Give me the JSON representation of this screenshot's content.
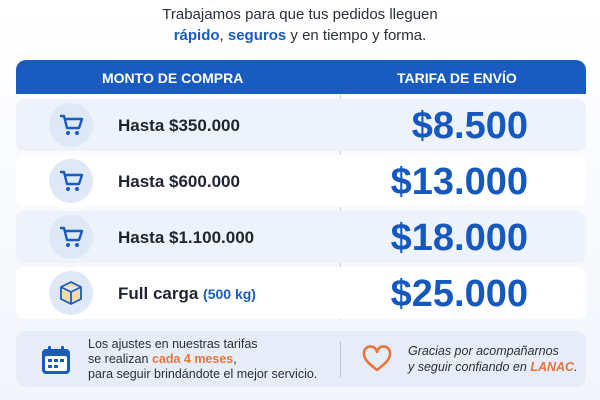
{
  "intro": {
    "line1": "Trabajamos para que tus pedidos lleguen",
    "line2": [
      {
        "text": "rápido"
      },
      {
        "text": ", "
      },
      {
        "text": "seguros"
      },
      {
        "text": " y en tiempo y forma."
      }
    ]
  },
  "table": {
    "headers": [
      "MONTO DE COMPRA",
      "TARIFA DE ENVÍO"
    ],
    "rows": [
      {
        "amount": "Hasta $350.000",
        "price": "$8.500"
      },
      {
        "amount": "Hasta $600.000",
        "price": "$13.000"
      },
      {
        "amount": "Hasta $1.100.000",
        "price": "$18.000"
      },
      {
        "amount": "Full carga",
        "note": "(500 kg)",
        "price": "$25.000"
      }
    ]
  },
  "footer": {
    "left": {
      "line1": "Los ajustes en nuestras tarifas",
      "line2a": "se realizan ",
      "line2b": "cada 4 meses",
      "line2c": ",",
      "line3": "para seguir brindándote el mejor servicio."
    },
    "right": {
      "line1": "Gracias por acompañarnos",
      "line2a": "y seguir confiando en ",
      "line2b": "LANAC",
      "line2c": "."
    }
  }
}
